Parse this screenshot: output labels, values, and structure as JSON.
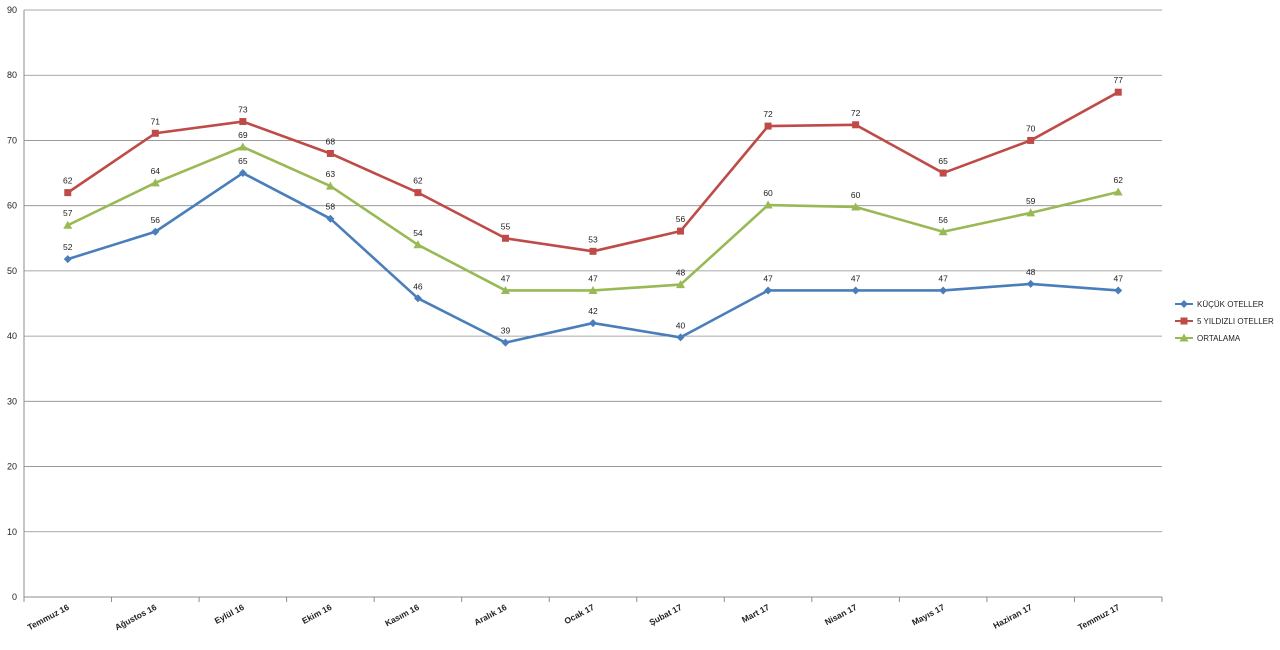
{
  "chart_data": {
    "type": "line",
    "categories": [
      "Temmuz 16",
      "Ağustos 16",
      "Eylül 16",
      "Ekim 16",
      "Kasım 16",
      "Aralık 16",
      "Ocak 17",
      "Şubat 17",
      "Mart 17",
      "Nisan 17",
      "Mayıs 17",
      "Haziran 17",
      "Temmuz 17"
    ],
    "series": [
      {
        "name": "KÜÇÜK OTELLER",
        "color": "#4a7ebb",
        "marker": "diamond",
        "values": [
          51.8,
          56,
          65,
          58,
          45.8,
          39,
          42,
          39.8,
          47,
          47,
          47,
          48,
          47
        ],
        "labels": [
          "52",
          "56",
          "65",
          "58",
          "46",
          "39",
          "42",
          "40",
          "47",
          "47",
          "47",
          "48",
          "47"
        ]
      },
      {
        "name": "5 YILDIZLI OTELLER",
        "color": "#be4b48",
        "marker": "square",
        "values": [
          62,
          71.1,
          72.9,
          68,
          62,
          55,
          53,
          56.1,
          72.2,
          72.4,
          65,
          70,
          77.4
        ],
        "labels": [
          "62",
          "71",
          "73",
          "68",
          "62",
          "55",
          "53",
          "56",
          "72",
          "72",
          "65",
          "70",
          "77"
        ]
      },
      {
        "name": "ORTALAMA",
        "color": "#98b954",
        "marker": "triangle",
        "values": [
          57,
          63.5,
          69,
          63,
          54,
          47,
          47,
          47.9,
          60.1,
          59.8,
          56,
          58.9,
          62.1
        ],
        "labels": [
          "57",
          "64",
          "69",
          "63",
          "54",
          "47",
          "47",
          "48",
          "60",
          "60",
          "56",
          "59",
          "62"
        ]
      }
    ],
    "y_ticks": [
      "0",
      "10",
      "20",
      "30",
      "40",
      "50",
      "60",
      "70",
      "80",
      "90"
    ],
    "ylim": [
      0,
      90
    ],
    "grid": true,
    "legend_position": "right"
  }
}
